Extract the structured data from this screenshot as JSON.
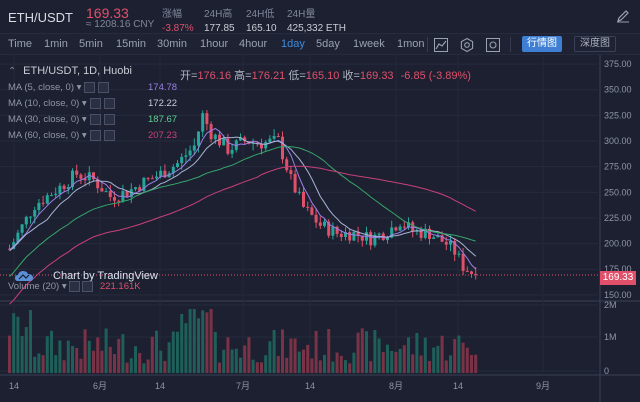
{
  "header": {
    "pair": "ETH/USDT",
    "last_price": "169.33",
    "cny_price": "≈ 1208.16 CNY",
    "stats": [
      {
        "key": "涨幅",
        "value": "-3.87%",
        "red": true
      },
      {
        "key": "24H高",
        "value": "177.85",
        "red": false
      },
      {
        "key": "24H低",
        "value": "165.10",
        "red": false
      },
      {
        "key": "24H量",
        "value": "425,332 ETH",
        "red": false
      }
    ]
  },
  "toolbar": {
    "intervals": [
      "Time",
      "1min",
      "5min",
      "15min",
      "30min",
      "1hour",
      "4hour",
      "1day",
      "5day",
      "1week",
      "1mon"
    ],
    "active_interval": "1day",
    "line_button": "行情图",
    "depth_button": "深度图"
  },
  "legend": {
    "title": "ETH/USDT, 1D, Huobi",
    "ohlc": {
      "open_label": "开",
      "open": "176.16",
      "high_label": "高",
      "high": "176.21",
      "low_label": "低",
      "low": "165.10",
      "close_label": "收",
      "close": "169.33",
      "change": "-6.85 (-3.89%)"
    },
    "mas": [
      {
        "label": "MA (5, close, 0)",
        "value": "174.78",
        "color": "#9b7ee6"
      },
      {
        "label": "MA (10, close, 0)",
        "value": "172.22",
        "color": "#a9b3d6"
      },
      {
        "label": "MA (30, close, 0)",
        "value": "187.67",
        "color": "#36a56a"
      },
      {
        "label": "MA (60, close, 0)",
        "value": "207.23",
        "color": "#c9407a"
      }
    ],
    "volume": {
      "label": "Volume (20)",
      "value": "221.161K"
    }
  },
  "watermark": "Chart by TradingView",
  "current_price_tag": "169.33",
  "colors": {
    "up": "#26a69a",
    "down": "#e0506b",
    "bg": "#1c2030",
    "accent": "#3e7fd4"
  },
  "chart_data": {
    "type": "candlestick",
    "y_ticks": [
      "375.00",
      "350.00",
      "325.00",
      "300.00",
      "275.00",
      "250.00",
      "225.00",
      "200.00",
      "175.00",
      "150.00"
    ],
    "y_range": [
      145,
      378
    ],
    "volume_ticks": [
      "2M",
      "1M",
      "0"
    ],
    "x_ticks": [
      "14",
      "6月",
      "14",
      "7月",
      "14",
      "8月",
      "14",
      "9月"
    ]
  }
}
